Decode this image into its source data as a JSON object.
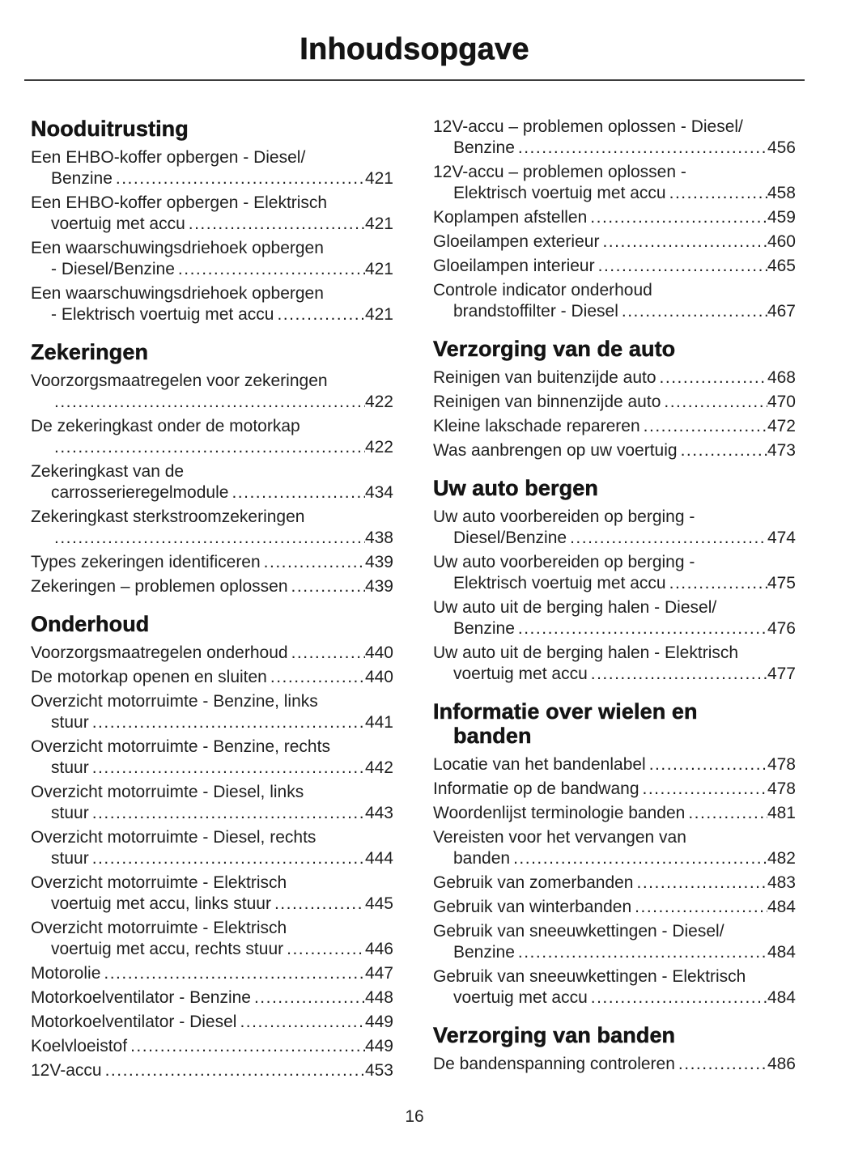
{
  "page": {
    "title": "Inhoudsopgave",
    "number": "16"
  },
  "toc": {
    "columns": [
      {
        "sections": [
          {
            "heading_lines": [
              "Nooduitrusting"
            ],
            "entries": [
              {
                "lines": [
                  "Een EHBO-koffer opbergen - Diesel/",
                  "Benzine"
                ],
                "page": "421"
              },
              {
                "lines": [
                  "Een EHBO-koffer opbergen - Elektrisch",
                  "voertuig met accu"
                ],
                "page": "421"
              },
              {
                "lines": [
                  "Een waarschuwingsdriehoek opbergen",
                  "- Diesel/Benzine"
                ],
                "page": "421"
              },
              {
                "lines": [
                  "Een waarschuwingsdriehoek opbergen",
                  "- Elektrisch voertuig met accu"
                ],
                "page": "421"
              }
            ]
          },
          {
            "heading_lines": [
              "Zekeringen"
            ],
            "entries": [
              {
                "lines": [
                  "Voorzorgsmaatregelen voor zekeringen",
                  ""
                ],
                "page": "422"
              },
              {
                "lines": [
                  "De zekeringkast onder de motorkap",
                  ""
                ],
                "page": "422"
              },
              {
                "lines": [
                  "Zekeringkast van de",
                  "carrosserieregelmodule"
                ],
                "page": "434"
              },
              {
                "lines": [
                  "Zekeringkast sterkstroomzekeringen",
                  ""
                ],
                "page": "438"
              },
              {
                "lines": [
                  "Types zekeringen identificeren"
                ],
                "page": "439"
              },
              {
                "lines": [
                  "Zekeringen – problemen oplossen"
                ],
                "page": "439"
              }
            ]
          },
          {
            "heading_lines": [
              "Onderhoud"
            ],
            "entries": [
              {
                "lines": [
                  "Voorzorgsmaatregelen onderhoud"
                ],
                "page": "440"
              },
              {
                "lines": [
                  "De motorkap openen en sluiten"
                ],
                "page": "440"
              },
              {
                "lines": [
                  "Overzicht motorruimte - Benzine, links",
                  "stuur"
                ],
                "page": "441"
              },
              {
                "lines": [
                  "Overzicht motorruimte - Benzine, rechts",
                  "stuur"
                ],
                "page": "442"
              },
              {
                "lines": [
                  "Overzicht motorruimte - Diesel, links",
                  "stuur"
                ],
                "page": "443"
              },
              {
                "lines": [
                  "Overzicht motorruimte - Diesel, rechts",
                  "stuur"
                ],
                "page": "444"
              },
              {
                "lines": [
                  "Overzicht motorruimte - Elektrisch",
                  "voertuig met accu, links stuur"
                ],
                "page": "445"
              },
              {
                "lines": [
                  "Overzicht motorruimte - Elektrisch",
                  "voertuig met accu, rechts stuur"
                ],
                "page": "446"
              },
              {
                "lines": [
                  "Motorolie"
                ],
                "page": "447"
              },
              {
                "lines": [
                  "Motorkoelventilator - Benzine"
                ],
                "page": "448"
              },
              {
                "lines": [
                  "Motorkoelventilator - Diesel"
                ],
                "page": "449"
              },
              {
                "lines": [
                  "Koelvloeistof"
                ],
                "page": "449"
              },
              {
                "lines": [
                  "12V-accu"
                ],
                "page": "453"
              }
            ]
          }
        ]
      },
      {
        "sections": [
          {
            "heading_lines": null,
            "entries": [
              {
                "lines": [
                  "12V-accu – problemen oplossen - Diesel/",
                  "Benzine"
                ],
                "page": "456"
              },
              {
                "lines": [
                  "12V-accu – problemen oplossen -",
                  "Elektrisch voertuig met accu"
                ],
                "page": "458"
              },
              {
                "lines": [
                  "Koplampen afstellen"
                ],
                "page": "459"
              },
              {
                "lines": [
                  "Gloeilampen exterieur"
                ],
                "page": "460"
              },
              {
                "lines": [
                  "Gloeilampen interieur"
                ],
                "page": "465"
              },
              {
                "lines": [
                  "Controle indicator onderhoud",
                  "brandstoffilter - Diesel"
                ],
                "page": "467"
              }
            ]
          },
          {
            "heading_lines": [
              "Verzorging van de auto"
            ],
            "entries": [
              {
                "lines": [
                  "Reinigen van buitenzijde auto"
                ],
                "page": "468"
              },
              {
                "lines": [
                  "Reinigen van binnenzijde auto"
                ],
                "page": "470"
              },
              {
                "lines": [
                  "Kleine lakschade repareren"
                ],
                "page": "472"
              },
              {
                "lines": [
                  "Was aanbrengen op uw voertuig"
                ],
                "page": "473"
              }
            ]
          },
          {
            "heading_lines": [
              "Uw auto bergen"
            ],
            "entries": [
              {
                "lines": [
                  "Uw auto voorbereiden op berging -",
                  "Diesel/Benzine"
                ],
                "page": "474"
              },
              {
                "lines": [
                  "Uw auto voorbereiden op berging -",
                  "Elektrisch voertuig met accu"
                ],
                "page": "475"
              },
              {
                "lines": [
                  "Uw auto uit de berging halen - Diesel/",
                  "Benzine"
                ],
                "page": "476"
              },
              {
                "lines": [
                  "Uw auto uit de berging halen - Elektrisch",
                  "voertuig met accu"
                ],
                "page": "477"
              }
            ]
          },
          {
            "heading_lines": [
              "Informatie over wielen en",
              "banden"
            ],
            "entries": [
              {
                "lines": [
                  "Locatie van het bandenlabel"
                ],
                "page": "478"
              },
              {
                "lines": [
                  "Informatie op de bandwang"
                ],
                "page": "478"
              },
              {
                "lines": [
                  "Woordenlijst terminologie banden"
                ],
                "page": "481"
              },
              {
                "lines": [
                  "Vereisten voor het vervangen van",
                  "banden"
                ],
                "page": "482"
              },
              {
                "lines": [
                  "Gebruik van zomerbanden"
                ],
                "page": "483"
              },
              {
                "lines": [
                  "Gebruik van winterbanden"
                ],
                "page": "484"
              },
              {
                "lines": [
                  "Gebruik van sneeuwkettingen - Diesel/",
                  "Benzine"
                ],
                "page": "484"
              },
              {
                "lines": [
                  "Gebruik van sneeuwkettingen - Elektrisch",
                  "voertuig met accu"
                ],
                "page": "484"
              }
            ]
          },
          {
            "heading_lines": [
              "Verzorging van banden"
            ],
            "entries": [
              {
                "lines": [
                  "De bandenspanning controleren"
                ],
                "page": "486"
              }
            ]
          }
        ]
      }
    ]
  }
}
